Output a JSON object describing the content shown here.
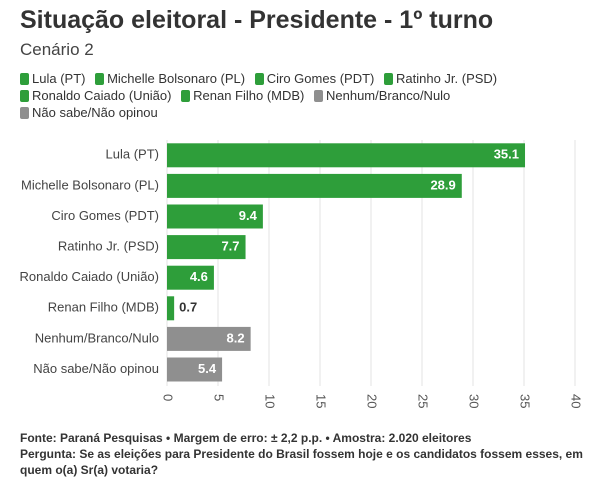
{
  "header": {
    "title": "Situação eleitoral - Presidente - 1º turno",
    "subtitle": "Cenário 2"
  },
  "legend": [
    {
      "label": "Lula (PT)",
      "color": "#2e9e3a"
    },
    {
      "label": "Michelle Bolsonaro (PL)",
      "color": "#2e9e3a"
    },
    {
      "label": "Ciro Gomes (PDT)",
      "color": "#2e9e3a"
    },
    {
      "label": "Ratinho Jr. (PSD)",
      "color": "#2e9e3a"
    },
    {
      "label": "Ronaldo Caiado (União)",
      "color": "#2e9e3a"
    },
    {
      "label": "Renan Filho (MDB)",
      "color": "#2e9e3a"
    },
    {
      "label": "Nenhum/Branco/Nulo",
      "color": "#8f8f8f"
    },
    {
      "label": "Não sabe/Não opinou",
      "color": "#8f8f8f"
    }
  ],
  "chart_data": {
    "type": "bar",
    "orientation": "horizontal",
    "categories": [
      "Lula (PT)",
      "Michelle Bolsonaro (PL)",
      "Ciro Gomes (PDT)",
      "Ratinho Jr. (PSD)",
      "Ronaldo Caiado (União)",
      "Renan Filho (MDB)",
      "Nenhum/Branco/Nulo",
      "Não sabe/Não opinou"
    ],
    "values": [
      35.1,
      28.9,
      9.4,
      7.7,
      4.6,
      0.7,
      8.2,
      5.4
    ],
    "value_labels": [
      "35.1",
      "28.9",
      "9.4",
      "7.7",
      "4.6",
      "0.7",
      "8.2",
      "5.4"
    ],
    "colors": [
      "#2e9e3a",
      "#2e9e3a",
      "#2e9e3a",
      "#2e9e3a",
      "#2e9e3a",
      "#2e9e3a",
      "#8f8f8f",
      "#8f8f8f"
    ],
    "xlim": [
      0,
      40
    ],
    "xticks": [
      "0",
      "5",
      "10",
      "15",
      "20",
      "25",
      "30",
      "35",
      "40"
    ],
    "grid": true,
    "legend_position": "top"
  },
  "footer": {
    "source": "Fonte: Paraná Pesquisas • Margem de erro: ± 2,2 p.p. • Amostra: 2.020 eleitores",
    "question": "Pergunta: Se as eleições para Presidente do Brasil fossem hoje e os candidatos fossem esses, em quem o(a) Sr(a) votaria?"
  }
}
